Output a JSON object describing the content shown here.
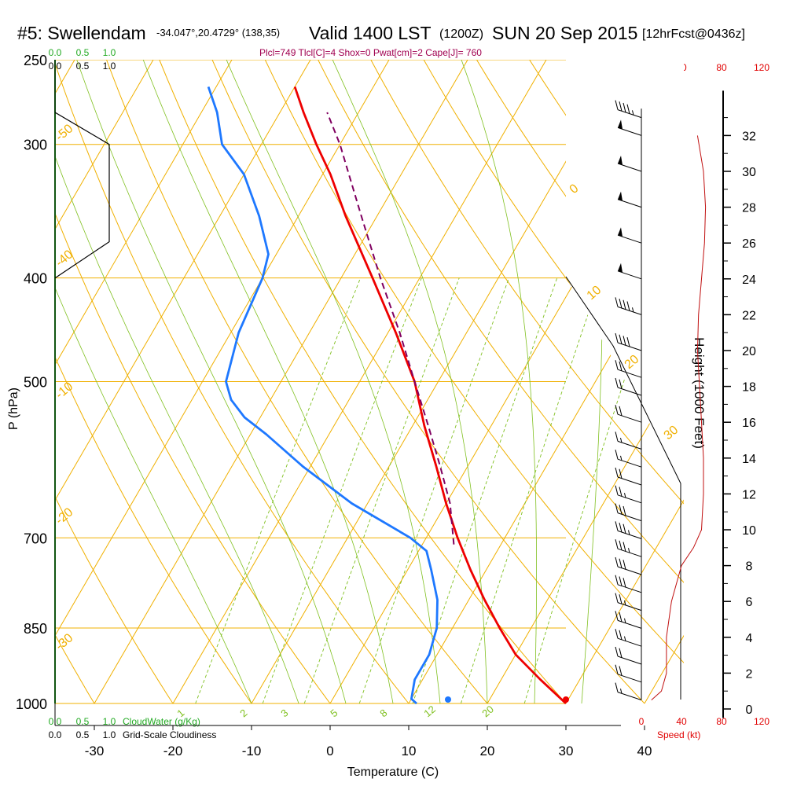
{
  "header": {
    "station": "#5: Swellendam",
    "coords": "-34.047°,20.4729° (138,35)",
    "valid": "Valid 1400 LST",
    "utc": "(1200Z)",
    "date": "SUN 20 Sep 2015",
    "forecast": "[12hrFcst@0436z]",
    "indices": "Plcl=749 Tlcl[C]=4 Shox=0 Pwat[cm]=2 Cape[J]= 760"
  },
  "cloud_scales": {
    "water_ticks": [
      "0.0",
      "0.5",
      "1.0"
    ],
    "water_label": "CloudWater (g/Kg)",
    "cloudiness_ticks": [
      "0.0",
      "0.5",
      "1.0"
    ],
    "cloudiness_label": "Grid-Scale Cloudiness"
  },
  "speed_axis": {
    "ticks": [
      "0",
      "40",
      "80",
      "120"
    ],
    "label": "Speed (kt)"
  },
  "colors": {
    "temperature": "#ee0000",
    "dewpoint": "#1e78ff",
    "parcel": "#800060",
    "isobars_isotherms": "#f0b000",
    "mixing_ratio": "#80c020",
    "cloud": "#22aa22",
    "header_indices": "#a00050"
  },
  "chart_data": {
    "type": "line",
    "subtype": "skew-T log-P sounding",
    "xlabel": "Temperature (C)",
    "ylabel": "P (hPa)",
    "y2label": "Height (1000 Feet)",
    "x_ticks": [
      -30,
      -20,
      -10,
      0,
      10,
      20,
      30,
      40
    ],
    "p_levels": [
      250,
      300,
      400,
      500,
      700,
      850,
      1000
    ],
    "height_ticks": [
      0,
      2,
      4,
      6,
      8,
      10,
      12,
      14,
      16,
      18,
      20,
      22,
      24,
      26,
      28,
      30,
      32
    ],
    "xlim": [
      -35,
      45
    ],
    "ylim_hPa": [
      1000,
      250
    ],
    "isotherm_labels": [
      "0",
      "10",
      "20",
      "30",
      "-10",
      "-20",
      "-30",
      "-40",
      "-50"
    ],
    "mixing_ratio_labels": [
      "1",
      "2",
      "3",
      "5",
      "8",
      "12",
      "20"
    ],
    "series": [
      {
        "p": [
          1000,
          950,
          900,
          850,
          800,
          750,
          700,
          650,
          600,
          550,
          500,
          450,
          400,
          350,
          320,
          300,
          280,
          265
        ],
        "values": [
          30,
          25,
          20,
          16,
          12,
          8,
          4,
          0,
          -4,
          -8.5,
          -13,
          -19,
          -26,
          -34,
          -39,
          -43,
          -47,
          -50
        ]
      },
      {
        "p": [
          1000,
          990,
          950,
          900,
          850,
          800,
          750,
          720,
          700,
          650,
          600,
          560,
          540,
          520,
          500,
          450,
          400,
          380,
          350,
          320,
          300,
          280,
          265
        ],
        "values": [
          11,
          10,
          9,
          9,
          8,
          6,
          3,
          1,
          -2,
          -12,
          -21,
          -28,
          -32,
          -35,
          -37,
          -39,
          -40,
          -41,
          -45,
          -50,
          -55,
          -58,
          -61
        ]
      },
      {
        "p": [
          710,
          650,
          600,
          550,
          500,
          450,
          400,
          350,
          300,
          280
        ],
        "values": [
          4,
          0.5,
          -3.5,
          -8,
          -13,
          -18.5,
          -25,
          -32,
          -40,
          -44
        ]
      }
    ],
    "surface_points": {
      "temperature": 30,
      "dewpoint": 15
    },
    "cloud_water": {
      "p": [
        250,
        280,
        300,
        350,
        370,
        400
      ],
      "values": [
        0,
        0,
        0.6,
        0.6,
        0.6,
        0
      ]
    },
    "wind_speed": {
      "height_kft": [
        0.5,
        1,
        2,
        4,
        6,
        8,
        9,
        10,
        12,
        14,
        16,
        18,
        20,
        22,
        24,
        26,
        28,
        30,
        32
      ],
      "values": [
        10,
        20,
        25,
        25,
        30,
        40,
        52,
        60,
        62,
        62,
        60,
        58,
        56,
        57,
        60,
        63,
        64,
        62,
        56
      ]
    },
    "wind_barbs": {
      "height_kft": [
        0.5,
        1.5,
        2.5,
        3.5,
        4.5,
        5.5,
        6.5,
        7.5,
        8.5,
        9.5,
        10.5,
        11.5,
        12.5,
        13.5,
        14.5,
        16,
        17.5,
        18.5,
        20,
        22,
        24,
        26,
        28,
        30,
        32,
        33
      ],
      "speed_kt": [
        15,
        20,
        20,
        25,
        25,
        25,
        30,
        30,
        35,
        35,
        30,
        25,
        20,
        15,
        15,
        20,
        20,
        20,
        40,
        45,
        50,
        50,
        55,
        50,
        50,
        45
      ]
    }
  }
}
